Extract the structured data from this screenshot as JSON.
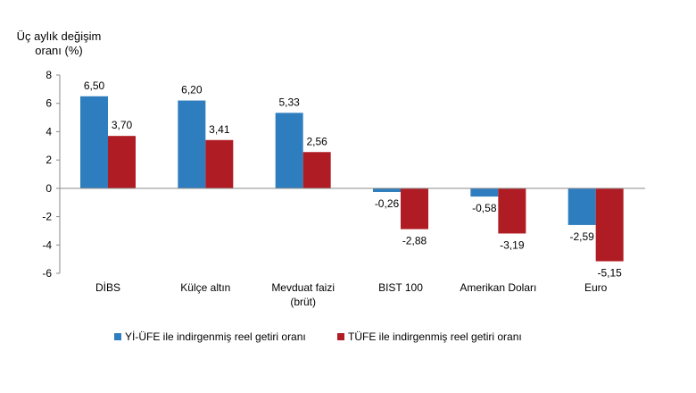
{
  "chart_data": {
    "type": "bar",
    "ylabel": "Üç aylık değişim oranı (%)",
    "ylabel_lines": [
      "Üç aylık değişim",
      "oranı (%)"
    ],
    "categories": [
      [
        "DİBS"
      ],
      [
        "Külçe altın"
      ],
      [
        "Mevduat faizi",
        "(brüt)"
      ],
      [
        "BIST 100"
      ],
      [
        "Amerikan Doları"
      ],
      [
        "Euro"
      ]
    ],
    "series": [
      {
        "name": "Yİ-ÜFE ile indirgenmiş reel getiri oranı",
        "color": "#2e7ebf",
        "values": [
          6.5,
          6.2,
          5.33,
          -0.26,
          -0.58,
          -2.59
        ],
        "labels": [
          "6,50",
          "6,20",
          "5,33",
          "-0,26",
          "-0,58",
          "-2,59"
        ]
      },
      {
        "name": "TÜFE ile indirgenmiş reel getiri oranı",
        "color": "#b01c24",
        "values": [
          3.7,
          3.41,
          2.56,
          -2.88,
          -3.19,
          -5.15
        ],
        "labels": [
          "3,70",
          "3,41",
          "2,56",
          "-2,88",
          "-3,19",
          "-5,15"
        ]
      }
    ],
    "yticks": [
      8,
      6,
      4,
      2,
      0,
      -2,
      -4,
      -6
    ],
    "ytick_labels": [
      "8",
      "6",
      "4",
      "2",
      "0",
      "-2",
      "-4",
      "-6"
    ],
    "ylim": [
      -6,
      8
    ],
    "grid": false,
    "legend": "bottom"
  }
}
